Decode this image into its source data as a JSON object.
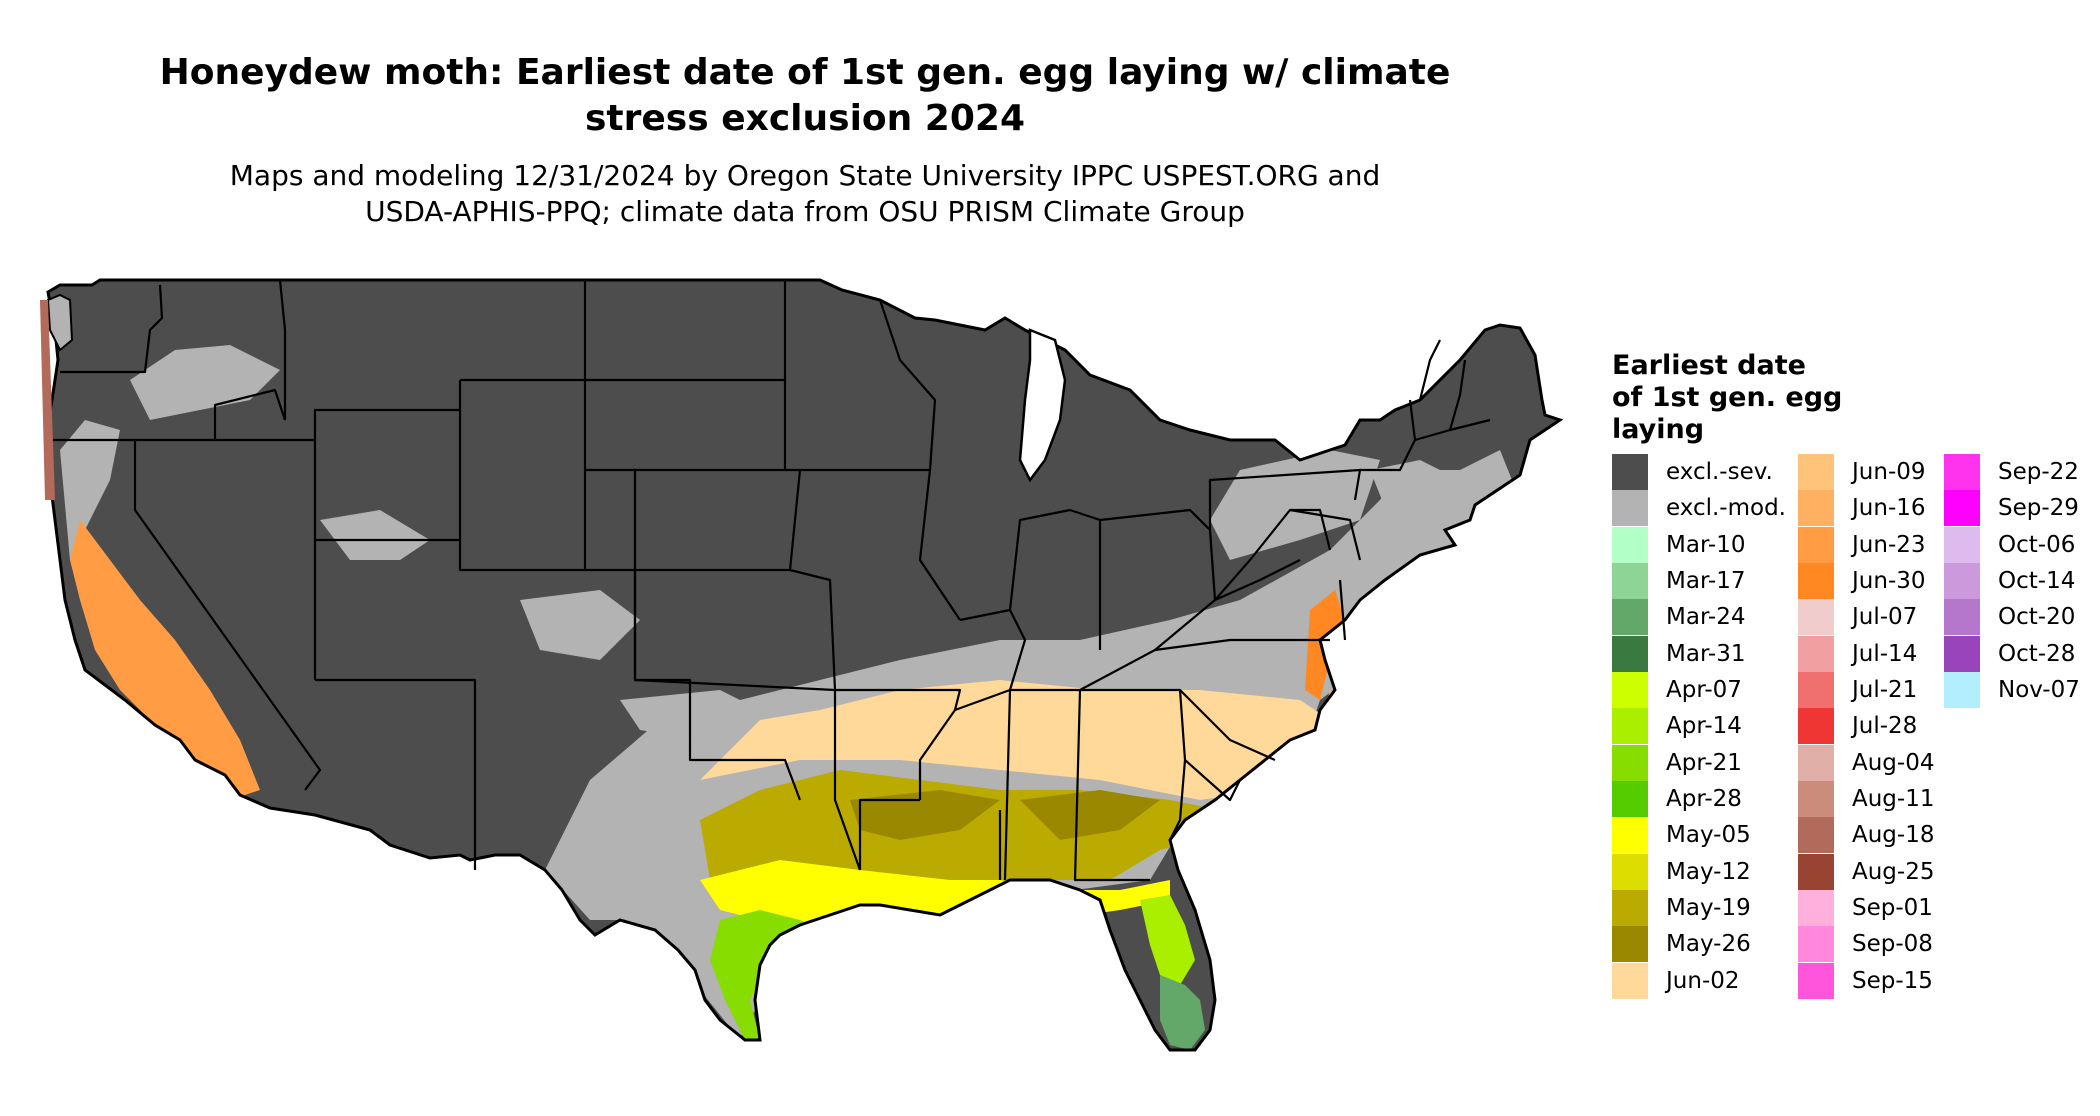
{
  "title": "Honeydew moth: Earliest date of 1st gen. egg laying w/ climate stress exclusion 2024",
  "title_lines": [
    "Honeydew moth: Earliest date of 1st gen. egg laying w/ climate",
    "stress exclusion 2024"
  ],
  "subtitle_lines": [
    "Maps and modeling 12/31/2024 by Oregon State University IPPC USPEST.ORG and",
    "USDA-APHIS-PPQ; climate data from OSU PRISM Climate Group"
  ],
  "legend": {
    "title_lines": [
      "Earliest date",
      "of 1st gen. egg",
      "laying"
    ],
    "columns": [
      [
        {
          "label": "excl.-sev.",
          "color": "#4d4d4d"
        },
        {
          "label": "excl.-mod.",
          "color": "#b3b3b3"
        },
        {
          "label": "Mar-10",
          "color": "#b3ffc8"
        },
        {
          "label": "Mar-17",
          "color": "#8ed496"
        },
        {
          "label": "Mar-24",
          "color": "#63a868"
        },
        {
          "label": "Mar-31",
          "color": "#3a7a40"
        },
        {
          "label": "Apr-07",
          "color": "#ccff00"
        },
        {
          "label": "Apr-14",
          "color": "#aaee00"
        },
        {
          "label": "Apr-21",
          "color": "#88dd00"
        },
        {
          "label": "Apr-28",
          "color": "#55cc00"
        },
        {
          "label": "May-05",
          "color": "#ffff00"
        },
        {
          "label": "May-12",
          "color": "#dddd00"
        },
        {
          "label": "May-19",
          "color": "#bbaa00"
        },
        {
          "label": "May-26",
          "color": "#998800"
        },
        {
          "label": "Jun-02",
          "color": "#ffd99a"
        }
      ],
      [
        {
          "label": "Jun-09",
          "color": "#ffc47a"
        },
        {
          "label": "Jun-16",
          "color": "#ffb060"
        },
        {
          "label": "Jun-23",
          "color": "#ff9c44"
        },
        {
          "label": "Jun-30",
          "color": "#ff8822"
        },
        {
          "label": "Jul-07",
          "color": "#f0cccc"
        },
        {
          "label": "Jul-14",
          "color": "#f0a0a0"
        },
        {
          "label": "Jul-21",
          "color": "#f07070"
        },
        {
          "label": "Jul-28",
          "color": "#f03535"
        },
        {
          "label": "Aug-04",
          "color": "#e0b0a8"
        },
        {
          "label": "Aug-11",
          "color": "#cc8c7c"
        },
        {
          "label": "Aug-18",
          "color": "#b26a5a"
        },
        {
          "label": "Aug-25",
          "color": "#994433"
        },
        {
          "label": "Sep-01",
          "color": "#ffb0dd"
        },
        {
          "label": "Sep-08",
          "color": "#ff88dd"
        },
        {
          "label": "Sep-15",
          "color": "#ff55dd"
        }
      ],
      [
        {
          "label": "Sep-22",
          "color": "#ff33ee"
        },
        {
          "label": "Sep-29",
          "color": "#ff00ff"
        },
        {
          "label": "Oct-06",
          "color": "#ddbbee"
        },
        {
          "label": "Oct-14",
          "color": "#cc99dd"
        },
        {
          "label": "Oct-20",
          "color": "#b577cc"
        },
        {
          "label": "Oct-28",
          "color": "#9944bb"
        },
        {
          "label": "Nov-07",
          "color": "#b3eeff"
        }
      ]
    ]
  }
}
